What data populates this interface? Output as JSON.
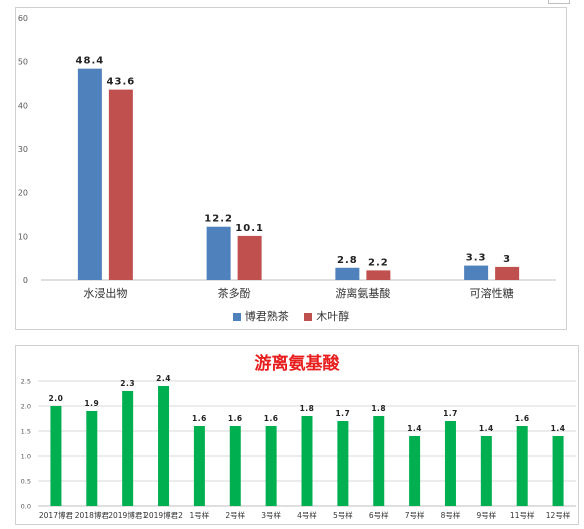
{
  "charts": [
    {
      "type": "bar",
      "categories": [
        "水浸出物",
        "茶多酚",
        "游离氨基酸",
        "可溶性糖"
      ],
      "series": [
        {
          "name": "博君熟茶",
          "values": [
            48.4,
            12.2,
            2.8,
            3.3
          ],
          "labels": [
            "48.4",
            "12.2",
            "2.8",
            "3.3"
          ],
          "color": "#4f81bd"
        },
        {
          "name": "木叶醇",
          "values": [
            43.6,
            10.1,
            2.2,
            3
          ],
          "labels": [
            "43.6",
            "10.1",
            "2.2",
            "3"
          ],
          "color": "#c0504d"
        }
      ],
      "yticks": [
        "0",
        "10",
        "20",
        "30",
        "40",
        "50",
        "60"
      ],
      "ylim": [
        0,
        60
      ],
      "grid": false,
      "legend": "bottom"
    },
    {
      "type": "bar",
      "title": "游离氨基酸",
      "categories": [
        "2017博君",
        "2018博君",
        "2019博君1",
        "2019博君2",
        "1号样",
        "2号样",
        "3号样",
        "4号样",
        "5号样",
        "6号样",
        "7号样",
        "8号样",
        "9号样",
        "11号样",
        "12号样"
      ],
      "series": [
        {
          "values": [
            2.0,
            1.9,
            2.3,
            2.4,
            1.6,
            1.6,
            1.6,
            1.8,
            1.7,
            1.8,
            1.4,
            1.7,
            1.4,
            1.6,
            1.4
          ],
          "labels": [
            "2.0",
            "1.9",
            "2.3",
            "2.4",
            "1.6",
            "1.6",
            "1.6",
            "1.8",
            "1.7",
            "1.8",
            "1.4",
            "1.7",
            "1.4",
            "1.6",
            "1.4"
          ],
          "color": "#00b050"
        }
      ],
      "yticks": [
        "0.0",
        "0.5",
        "1.0",
        "1.5",
        "2.0",
        "2.5"
      ],
      "ylim": [
        0,
        2.5
      ],
      "grid": true,
      "legend": "none"
    }
  ],
  "colors": {
    "title": "#e81d1d",
    "grid": "#d9d9d9",
    "axis": "#bfbfbf",
    "text": "#595959"
  }
}
